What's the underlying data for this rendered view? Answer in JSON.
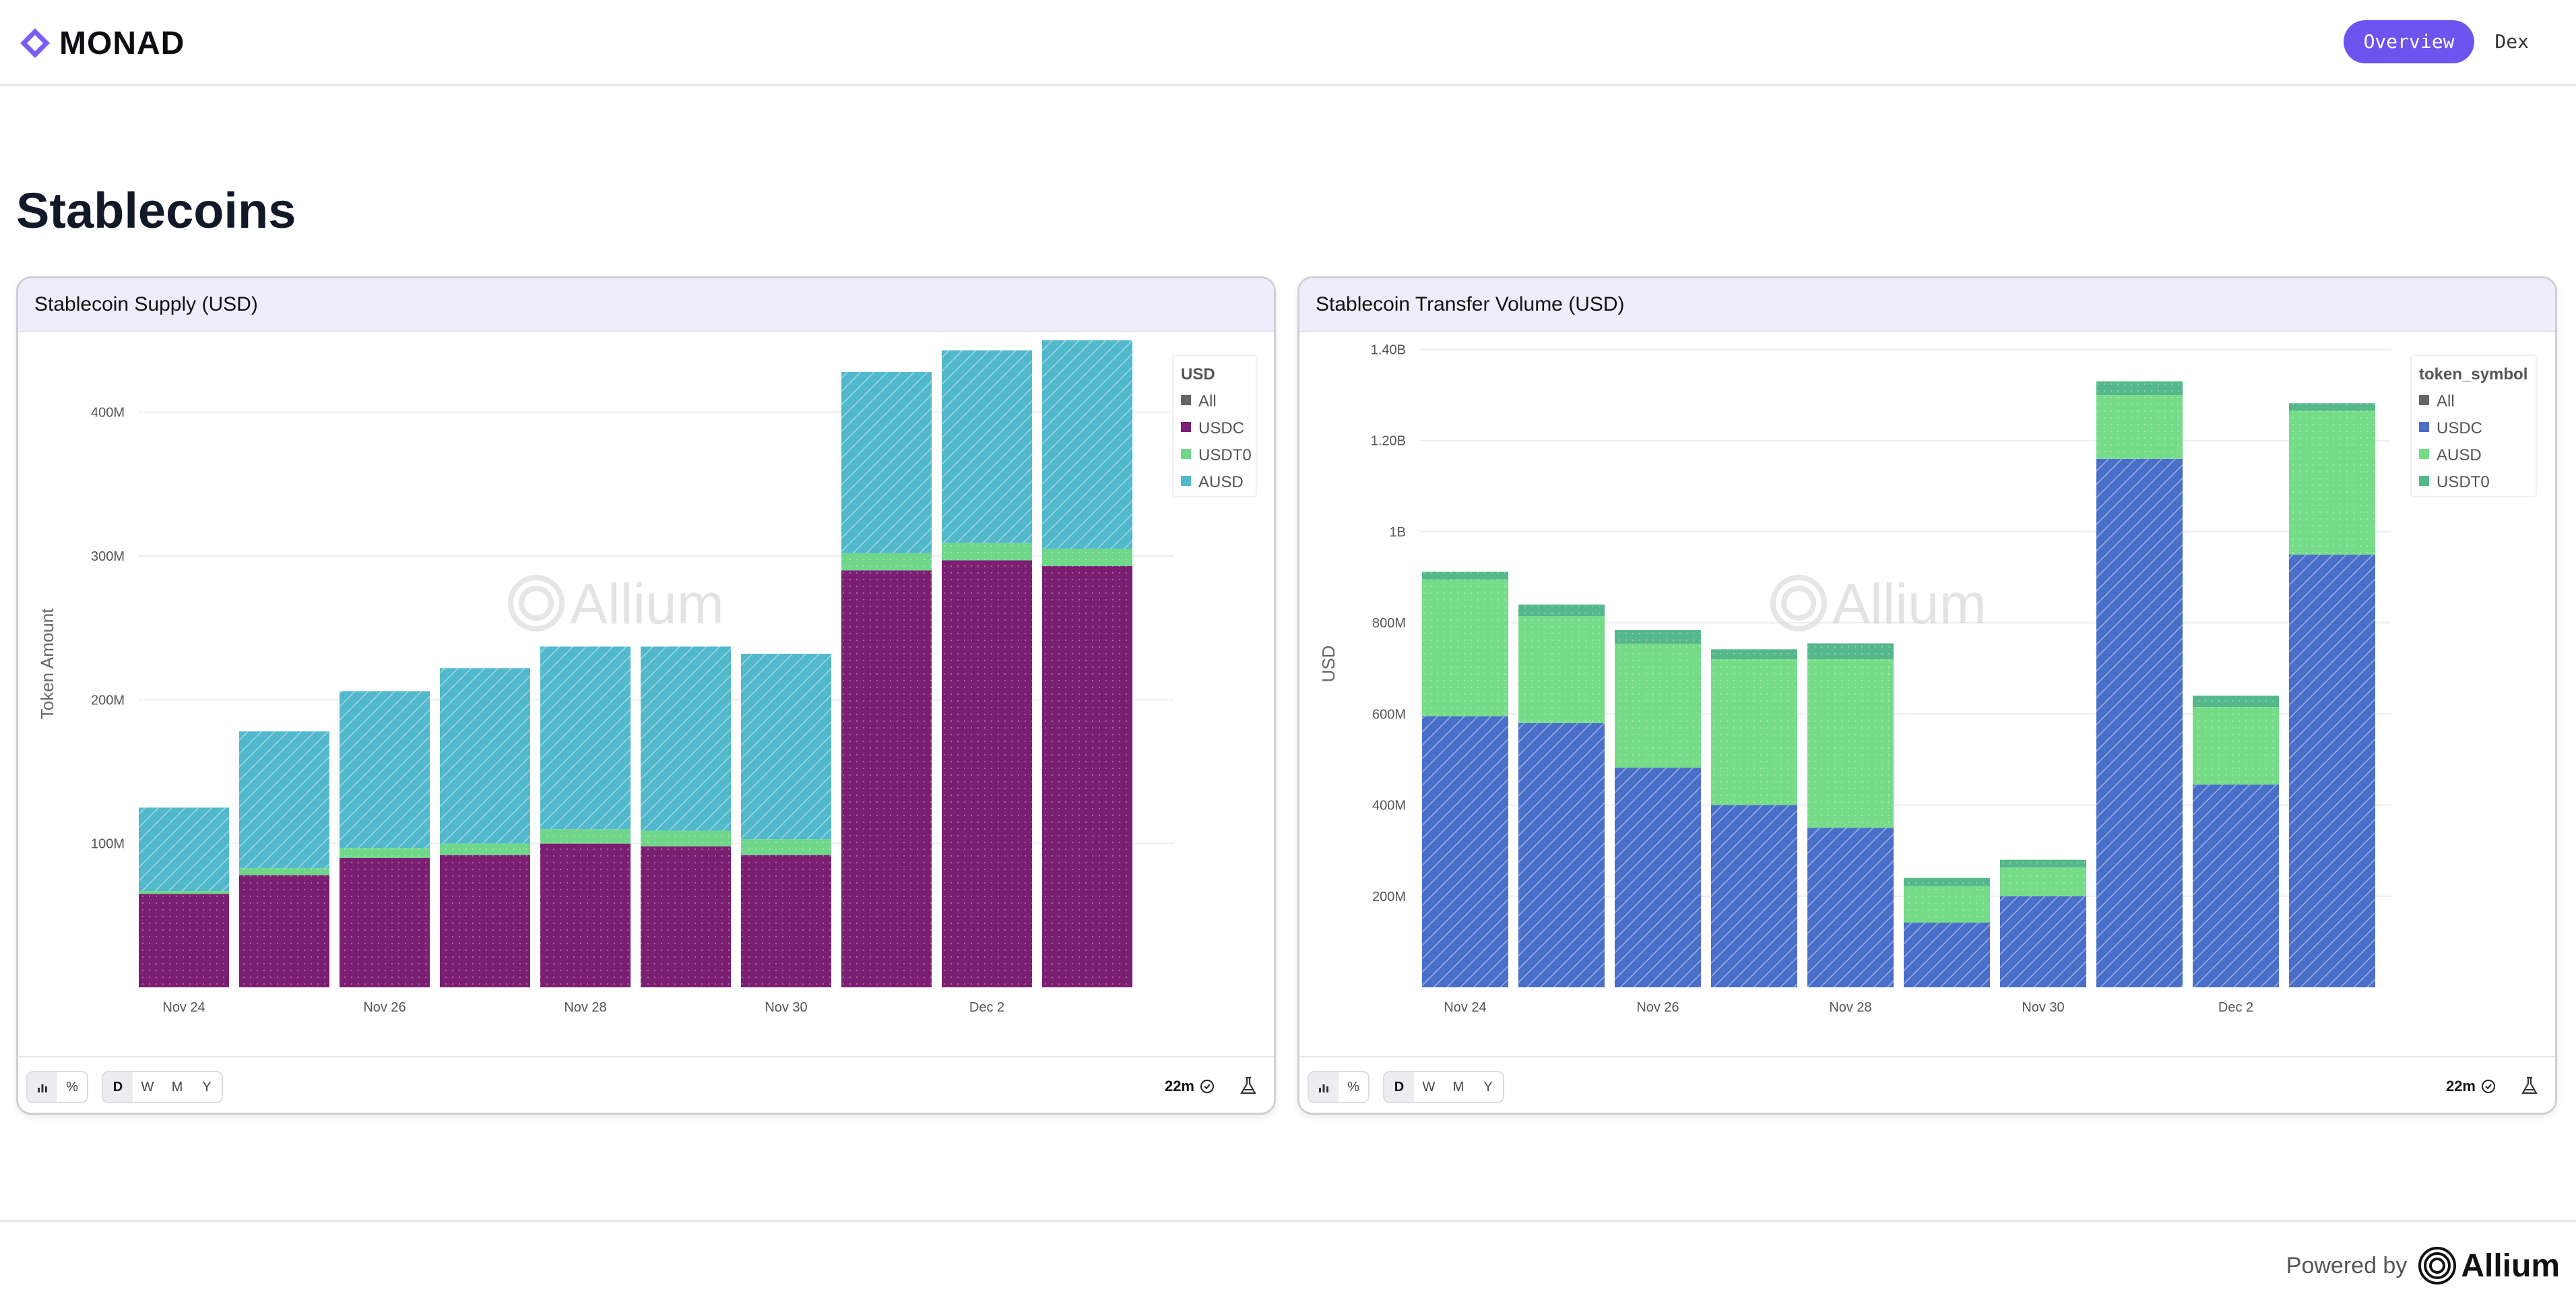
{
  "header": {
    "brand": "MONAD",
    "nav": [
      {
        "label": "Overview",
        "active": true
      },
      {
        "label": "Dex",
        "active": false
      }
    ]
  },
  "page_title": "Stablecoins",
  "controls": {
    "chart_types": [
      "bar-icon",
      "percent"
    ],
    "percent_symbol": "%",
    "granularity": [
      "D",
      "W",
      "M",
      "Y"
    ],
    "selected_granularity": "D",
    "refresh": "22m"
  },
  "watermark": "Allium",
  "footer": {
    "powered_by": "Powered by",
    "brand": "Allium"
  },
  "cards": [
    {
      "title": "Stablecoin Supply (USD)"
    },
    {
      "title": "Stablecoin Transfer Volume (USD)"
    }
  ],
  "chart_data": [
    {
      "type": "bar",
      "stacked": true,
      "title": "Stablecoin Supply (USD)",
      "xlabel": "",
      "ylabel": "Token Amount",
      "ylim": [
        0,
        450000000
      ],
      "yticks": [
        {
          "value": 100000000,
          "label": "100M"
        },
        {
          "value": 200000000,
          "label": "200M"
        },
        {
          "value": 300000000,
          "label": "300M"
        },
        {
          "value": 400000000,
          "label": "400M"
        }
      ],
      "x_tick_labels": [
        "Nov 24",
        "",
        "Nov 26",
        "",
        "Nov 28",
        "",
        "Nov 30",
        "",
        "Dec 2",
        ""
      ],
      "categories": [
        "Nov 24",
        "Nov 25",
        "Nov 26",
        "Nov 27",
        "Nov 28",
        "Nov 29",
        "Nov 30",
        "Dec 1",
        "Dec 2",
        "Dec 3"
      ],
      "legend": {
        "title": "USD",
        "position": "top-right",
        "items": [
          "All",
          "USDC",
          "USDT0",
          "AUSD"
        ]
      },
      "colors": {
        "All": "#666666",
        "USDC": "#7b1f73",
        "USDT0": "#6fd68a",
        "AUSD": "#52b8cc"
      },
      "series": [
        {
          "name": "USDC",
          "pattern": "dots",
          "values": [
            65000000,
            78000000,
            90000000,
            92000000,
            100000000,
            98000000,
            92000000,
            290000000,
            297000000,
            293000000
          ]
        },
        {
          "name": "USDT0",
          "pattern": "dots",
          "values": [
            2000000,
            5000000,
            7000000,
            8000000,
            10000000,
            11000000,
            11000000,
            12000000,
            12000000,
            12000000
          ]
        },
        {
          "name": "AUSD",
          "pattern": "hatch",
          "values": [
            58000000,
            95000000,
            109000000,
            122000000,
            127000000,
            128000000,
            129000000,
            126000000,
            134000000,
            145000000
          ]
        }
      ]
    },
    {
      "type": "bar",
      "stacked": true,
      "title": "Stablecoin Transfer Volume (USD)",
      "xlabel": "",
      "ylabel": "USD",
      "ylim": [
        0,
        1420000000
      ],
      "yticks": [
        {
          "value": 200000000,
          "label": "200M"
        },
        {
          "value": 400000000,
          "label": "400M"
        },
        {
          "value": 600000000,
          "label": "600M"
        },
        {
          "value": 800000000,
          "label": "800M"
        },
        {
          "value": 1000000000,
          "label": "1B"
        },
        {
          "value": 1200000000,
          "label": "1.20B"
        },
        {
          "value": 1400000000,
          "label": "1.40B"
        }
      ],
      "x_tick_labels": [
        "Nov 24",
        "",
        "Nov 26",
        "",
        "Nov 28",
        "",
        "Nov 30",
        "",
        "Dec 2",
        ""
      ],
      "categories": [
        "Nov 24",
        "Nov 25",
        "Nov 26",
        "Nov 27",
        "Nov 28",
        "Nov 29",
        "Nov 30",
        "Dec 1",
        "Dec 2",
        "Dec 3"
      ],
      "legend": {
        "title": "token_symbol",
        "position": "top-right",
        "items": [
          "All",
          "USDC",
          "AUSD",
          "USDT0"
        ]
      },
      "colors": {
        "All": "#666666",
        "USDC": "#4a6fc8",
        "AUSD": "#76dc88",
        "USDT0": "#55b88a"
      },
      "series": [
        {
          "name": "USDC",
          "pattern": "hatch",
          "values": [
            595000000,
            580000000,
            482000000,
            400000000,
            350000000,
            142000000,
            200000000,
            1160000000,
            445000000,
            950000000
          ]
        },
        {
          "name": "AUSD",
          "pattern": "dots",
          "values": [
            300000000,
            235000000,
            272000000,
            320000000,
            370000000,
            80000000,
            63000000,
            140000000,
            170000000,
            315000000
          ]
        },
        {
          "name": "USDT0",
          "pattern": "dots",
          "values": [
            17000000,
            25000000,
            30000000,
            22000000,
            35000000,
            18000000,
            17000000,
            30000000,
            25000000,
            17000000
          ]
        }
      ]
    }
  ]
}
